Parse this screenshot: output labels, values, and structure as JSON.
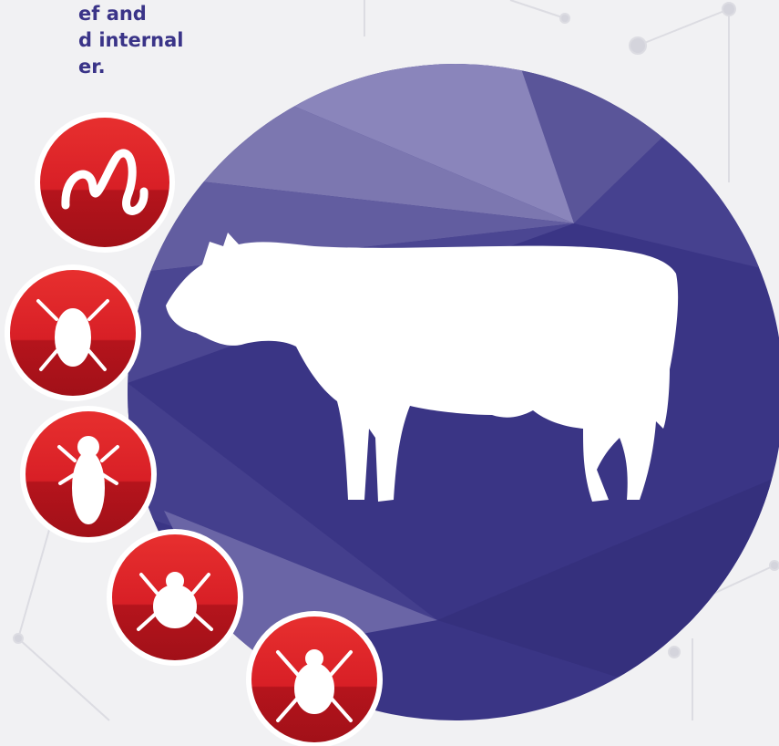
{
  "text": {
    "lines": [
      "ef and",
      "d internal",
      "er."
    ]
  }
}
